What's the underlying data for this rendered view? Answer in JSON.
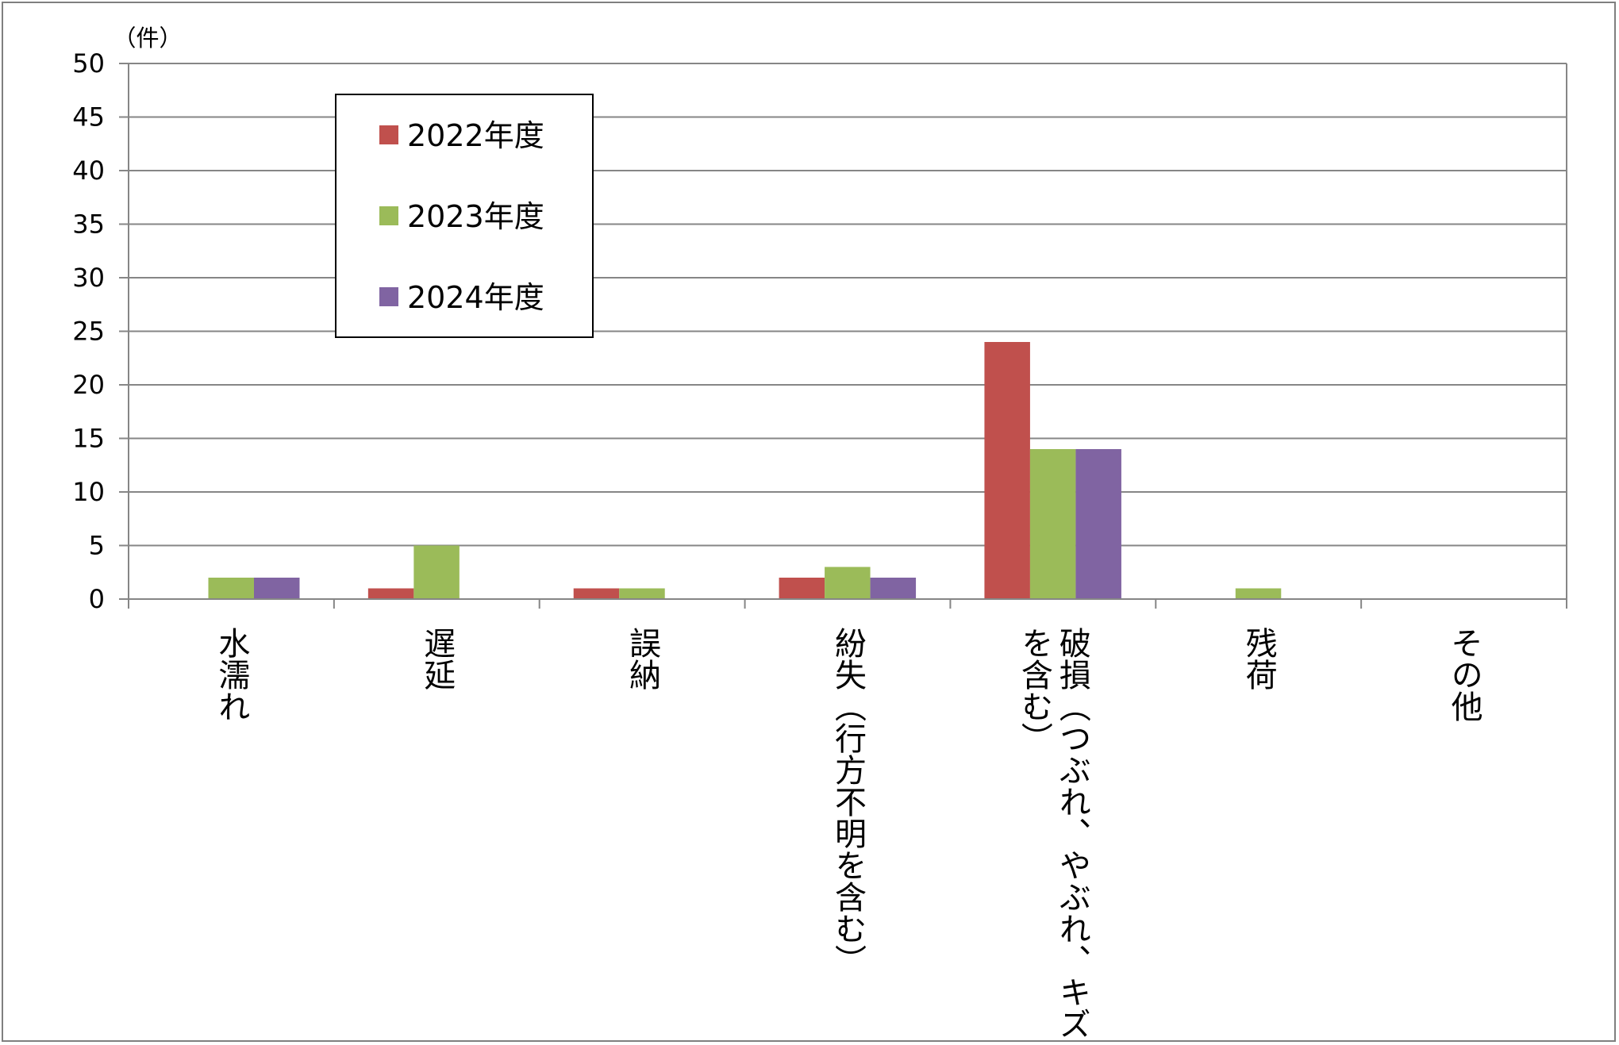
{
  "chart_data": {
    "type": "bar",
    "unit_label": "（件）",
    "categories": [
      [
        "水濡れ"
      ],
      [
        "遅延"
      ],
      [
        "誤納"
      ],
      [
        "紛失（行方不明を含む）"
      ],
      [
        "破損（つぶれ、やぶれ、キズ",
        "を含む）"
      ],
      [
        "残荷"
      ],
      [
        "その他"
      ]
    ],
    "series": [
      {
        "name": "2022年度",
        "color": "#C0504D",
        "values": [
          0,
          1,
          1,
          2,
          24,
          0,
          0
        ]
      },
      {
        "name": "2023年度",
        "color": "#9BBB59",
        "values": [
          2,
          5,
          1,
          3,
          14,
          1,
          0
        ]
      },
      {
        "name": "2024年度",
        "color": "#8064A2",
        "values": [
          2,
          0,
          0,
          2,
          14,
          0,
          0
        ]
      }
    ],
    "ylim": [
      0,
      50
    ],
    "yticks": [
      0,
      5,
      10,
      15,
      20,
      25,
      30,
      35,
      40,
      45,
      50
    ],
    "grid": true,
    "legend_position": "top-left"
  }
}
